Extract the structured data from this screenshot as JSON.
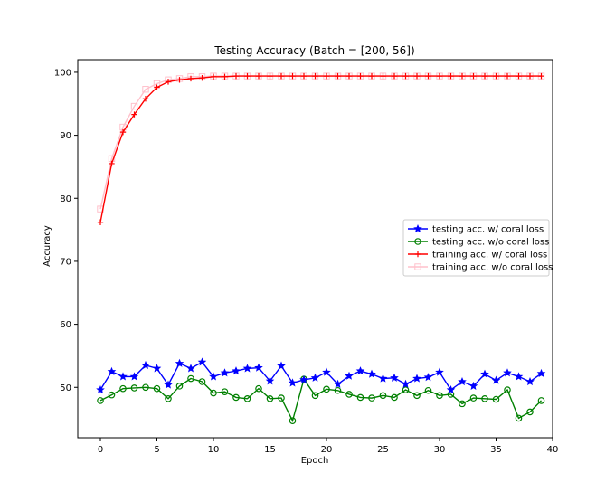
{
  "chart_data": {
    "type": "line",
    "title": "Testing Accuracy (Batch = [200, 56])",
    "xlabel": "Epoch",
    "ylabel": "Accuracy",
    "xlim": [
      -2,
      40
    ],
    "ylim": [
      42,
      102
    ],
    "xticks": [
      0,
      5,
      10,
      15,
      20,
      25,
      30,
      35,
      40
    ],
    "yticks": [
      50,
      60,
      70,
      80,
      90,
      100
    ],
    "x": [
      0,
      1,
      2,
      3,
      4,
      5,
      6,
      7,
      8,
      9,
      10,
      11,
      12,
      13,
      14,
      15,
      16,
      17,
      18,
      19,
      20,
      21,
      22,
      23,
      24,
      25,
      26,
      27,
      28,
      29,
      30,
      31,
      32,
      33,
      34,
      35,
      36,
      37,
      38,
      39
    ],
    "legend_position": "center-right",
    "series": [
      {
        "name": "testing acc. w/ coral loss",
        "color": "#0000ff",
        "marker": "star",
        "values": [
          49.6,
          52.5,
          51.7,
          51.7,
          53.5,
          53.0,
          50.4,
          53.8,
          53.0,
          54.0,
          51.7,
          52.3,
          52.6,
          53.0,
          53.1,
          51.0,
          53.4,
          50.7,
          51.2,
          51.5,
          52.4,
          50.5,
          51.8,
          52.6,
          52.1,
          51.4,
          51.5,
          50.5,
          51.4,
          51.6,
          52.4,
          49.6,
          50.9,
          50.2,
          52.1,
          51.1,
          52.3,
          51.7,
          50.9,
          52.2
        ]
      },
      {
        "name": "testing acc. w/o coral loss",
        "color": "#008000",
        "marker": "circle",
        "values": [
          47.9,
          48.8,
          49.8,
          49.9,
          50.0,
          49.8,
          48.2,
          50.2,
          51.4,
          50.9,
          49.1,
          49.3,
          48.4,
          48.2,
          49.8,
          48.2,
          48.3,
          44.7,
          51.3,
          48.7,
          49.7,
          49.5,
          48.9,
          48.4,
          48.3,
          48.7,
          48.4,
          49.6,
          48.7,
          49.5,
          48.7,
          48.9,
          47.4,
          48.3,
          48.2,
          48.1,
          49.6,
          45.1,
          46.1,
          47.9
        ]
      },
      {
        "name": "training acc. w/ coral loss",
        "color": "#ff0000",
        "marker": "plus",
        "values": [
          76.2,
          85.5,
          90.5,
          93.3,
          95.8,
          97.6,
          98.5,
          98.8,
          99.0,
          99.1,
          99.3,
          99.3,
          99.4,
          99.4,
          99.4,
          99.4,
          99.4,
          99.4,
          99.4,
          99.4,
          99.4,
          99.4,
          99.4,
          99.4,
          99.4,
          99.4,
          99.4,
          99.4,
          99.4,
          99.4,
          99.4,
          99.4,
          99.4,
          99.4,
          99.4,
          99.4,
          99.4,
          99.4,
          99.4,
          99.4
        ]
      },
      {
        "name": "training acc. w/o coral loss",
        "color": "#ffc0cb",
        "marker": "square",
        "values": [
          78.3,
          86.3,
          91.3,
          94.6,
          97.3,
          98.2,
          98.8,
          99.0,
          99.3,
          99.3,
          99.4,
          99.4,
          99.4,
          99.4,
          99.4,
          99.4,
          99.4,
          99.4,
          99.4,
          99.4,
          99.4,
          99.4,
          99.4,
          99.4,
          99.4,
          99.4,
          99.4,
          99.4,
          99.4,
          99.4,
          99.4,
          99.4,
          99.4,
          99.4,
          99.4,
          99.4,
          99.4,
          99.4,
          99.4,
          99.4
        ]
      }
    ]
  }
}
